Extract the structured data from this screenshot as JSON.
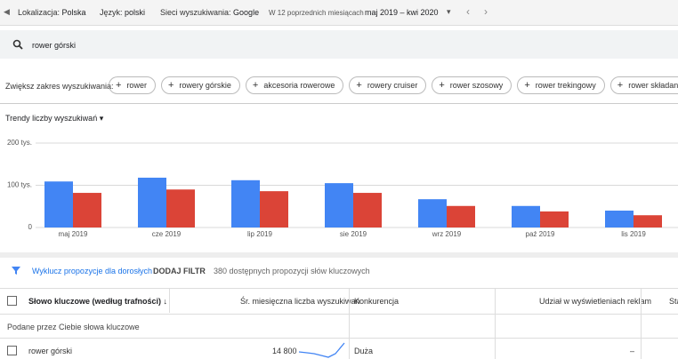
{
  "top_bar": {
    "location_label": "Lokalizacja:",
    "location": "Polska",
    "language_label": "Język:",
    "language": "polski",
    "network_label": "Sieci wyszukiwania:",
    "network": "Google",
    "period_label": "W 12 poprzednich miesiącach",
    "period": "maj 2019 – kwi 2020"
  },
  "search": {
    "query": "rower górski"
  },
  "refine": {
    "label": "Zwiększ zakres wyszukiwania:",
    "chips": [
      "rower",
      "rowery górskie",
      "akcesoria rowerowe",
      "rowery cruiser",
      "rower szosowy",
      "rower trekingowy",
      "rower składany"
    ]
  },
  "chart": {
    "type": "bar",
    "title": "Trendy liczby wyszukiwań",
    "categories": [
      "maj 2019",
      "cze 2019",
      "lip 2019",
      "sie 2019",
      "wrz 2019",
      "paź 2019",
      "lis 2019"
    ],
    "series": [
      {
        "color": "#4285f4",
        "values": [
          109000,
          118000,
          112000,
          105000,
          67000,
          51000,
          40000
        ]
      },
      {
        "color": "#db4437",
        "values": [
          82000,
          90000,
          86000,
          82000,
          51000,
          38000,
          29000
        ]
      }
    ],
    "ylim": [
      0,
      200000
    ],
    "yticks": [
      0,
      {
        "value": 100000,
        "label": "100 tys."
      },
      {
        "value": 200000,
        "label": "200 tys."
      }
    ],
    "grid": true
  },
  "filter": {
    "exclude_adult": "Wyklucz propozycje dla dorosłych",
    "add_filter": "DODAJ FILTR",
    "count": "380 dostępnych propozycji słów kluczowych"
  },
  "table": {
    "columns": [
      "Słowo kluczowe (według trafności)",
      "Śr. miesięczna liczba wyszukiwań",
      "Konkurencja",
      "Udział w wyświetleniach reklam",
      "Sta"
    ],
    "group": "Podane przez Ciebie słowa kluczowe",
    "rows": [
      [
        "rower górski",
        "14 800",
        "Duża",
        "–"
      ]
    ]
  }
}
